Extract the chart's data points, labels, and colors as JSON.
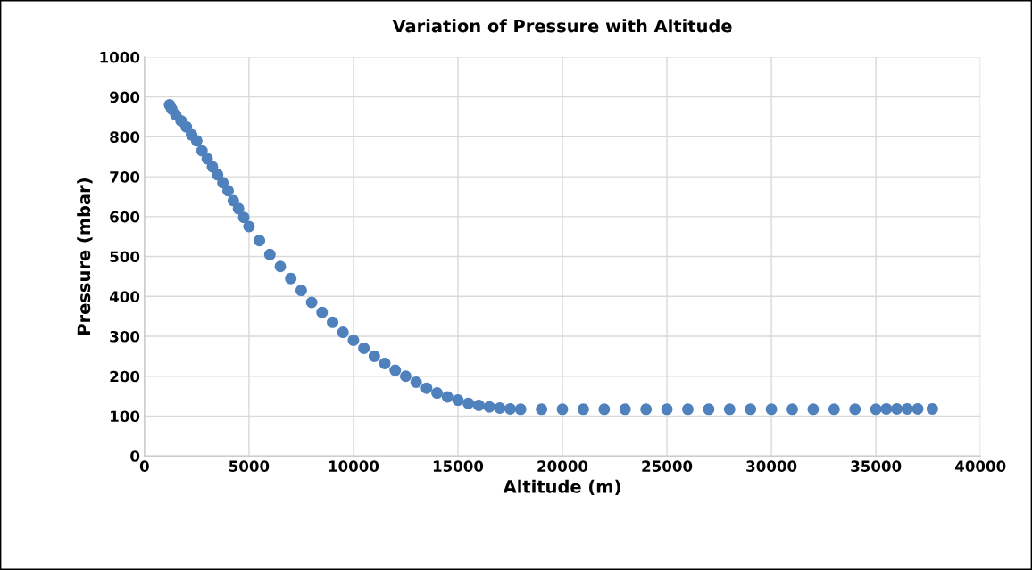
{
  "chart_data": {
    "type": "scatter",
    "title": "Variation of Pressure with Altitude",
    "xlabel": "Altitude (m)",
    "ylabel": "Pressure (mbar)",
    "series": [
      {
        "color": "#4f81bd",
        "x": [
          1200,
          1300,
          1500,
          1750,
          2000,
          2250,
          2500,
          2750,
          3000,
          3250,
          3500,
          3750,
          4000,
          4250,
          4500,
          4750,
          5000,
          5500,
          6000,
          6500,
          7000,
          7500,
          8000,
          8500,
          9000,
          9500,
          10000,
          10500,
          11000,
          11500,
          12000,
          12500,
          13000,
          13500,
          14000,
          14500,
          15000,
          15500,
          16000,
          16500,
          17000,
          17500,
          18000,
          19000,
          20000,
          21000,
          22000,
          23000,
          24000,
          25000,
          26000,
          27000,
          28000,
          29000,
          30000,
          31000,
          32000,
          33000,
          34000,
          35000,
          35500,
          36000,
          36500,
          37000,
          37700
        ],
        "values": [
          880,
          870,
          855,
          840,
          825,
          805,
          790,
          765,
          745,
          725,
          705,
          685,
          665,
          640,
          620,
          598,
          575,
          540,
          505,
          475,
          445,
          415,
          385,
          360,
          335,
          310,
          290,
          270,
          250,
          232,
          215,
          200,
          185,
          170,
          158,
          148,
          140,
          132,
          127,
          123,
          120,
          118,
          117,
          117,
          117,
          117,
          117,
          117,
          117,
          117,
          117,
          117,
          117,
          117,
          117,
          117,
          117,
          117,
          117,
          117,
          118,
          118,
          118,
          118,
          118
        ]
      }
    ],
    "xlim": [
      0,
      40000
    ],
    "xticks": [
      0,
      5000,
      10000,
      15000,
      20000,
      25000,
      30000,
      35000,
      40000
    ],
    "ylim": [
      0,
      1000
    ],
    "yticks": [
      0,
      100,
      200,
      300,
      400,
      500,
      600,
      700,
      800,
      900,
      1000
    ],
    "grid": true,
    "legend": false,
    "marker": "circle"
  }
}
